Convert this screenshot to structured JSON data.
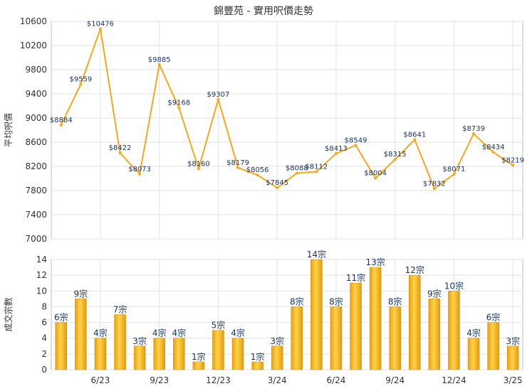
{
  "chart_data": [
    {
      "type": "line",
      "title": "錦豐苑 - 實用呎價走勢",
      "ylabel": "平均呎價",
      "ylim": [
        7000,
        10600
      ],
      "yticks": [
        7000,
        7400,
        7800,
        8200,
        8600,
        9000,
        9400,
        9800,
        10200,
        10600
      ],
      "color": "#f5a81c",
      "values": [
        8884,
        9559,
        10476,
        8422,
        8073,
        9885,
        9168,
        8160,
        9307,
        8179,
        8056,
        7845,
        8088,
        8112,
        8413,
        8549,
        8004,
        8315,
        8641,
        7832,
        8071,
        8739,
        8434,
        8219
      ],
      "point_labels": [
        "$8884",
        "$9559",
        "$10476",
        "$8422",
        "$8073",
        "$9885",
        "$9168",
        "$8160",
        "$9307",
        "$8179",
        "$8056",
        "$7845",
        "$8088",
        "$8112",
        "$8413",
        "$8549",
        "$8004",
        "$8315",
        "$8641",
        "$7832",
        "$8071",
        "$8739",
        "$8434",
        "$8219"
      ],
      "grid": true
    },
    {
      "type": "bar",
      "ylabel": "成交宗數",
      "ylim": [
        0,
        14
      ],
      "yticks": [
        0,
        2,
        4,
        6,
        8,
        10,
        12,
        14
      ],
      "color": "#f0b020",
      "values": [
        6,
        9,
        4,
        7,
        3,
        4,
        4,
        1,
        5,
        4,
        1,
        3,
        8,
        14,
        8,
        11,
        13,
        8,
        12,
        9,
        10,
        4,
        6,
        3
      ],
      "bar_labels": [
        "6宗",
        "9宗",
        "4宗",
        "7宗",
        "3宗",
        "4宗",
        "4宗",
        "1宗",
        "5宗",
        "4宗",
        "1宗",
        "3宗",
        "8宗",
        "14宗",
        "8宗",
        "11宗",
        "13宗",
        "8宗",
        "12宗",
        "9宗",
        "10宗",
        "4宗",
        "6宗",
        "3宗"
      ],
      "xtick_labels": [
        {
          "index": 2,
          "label": "6/23"
        },
        {
          "index": 5,
          "label": "9/23"
        },
        {
          "index": 8,
          "label": "12/23"
        },
        {
          "index": 11,
          "label": "3/24"
        },
        {
          "index": 14,
          "label": "6/24"
        },
        {
          "index": 17,
          "label": "9/24"
        },
        {
          "index": 20,
          "label": "12/24"
        },
        {
          "index": 23,
          "label": "3/25"
        }
      ],
      "grid": true
    }
  ]
}
